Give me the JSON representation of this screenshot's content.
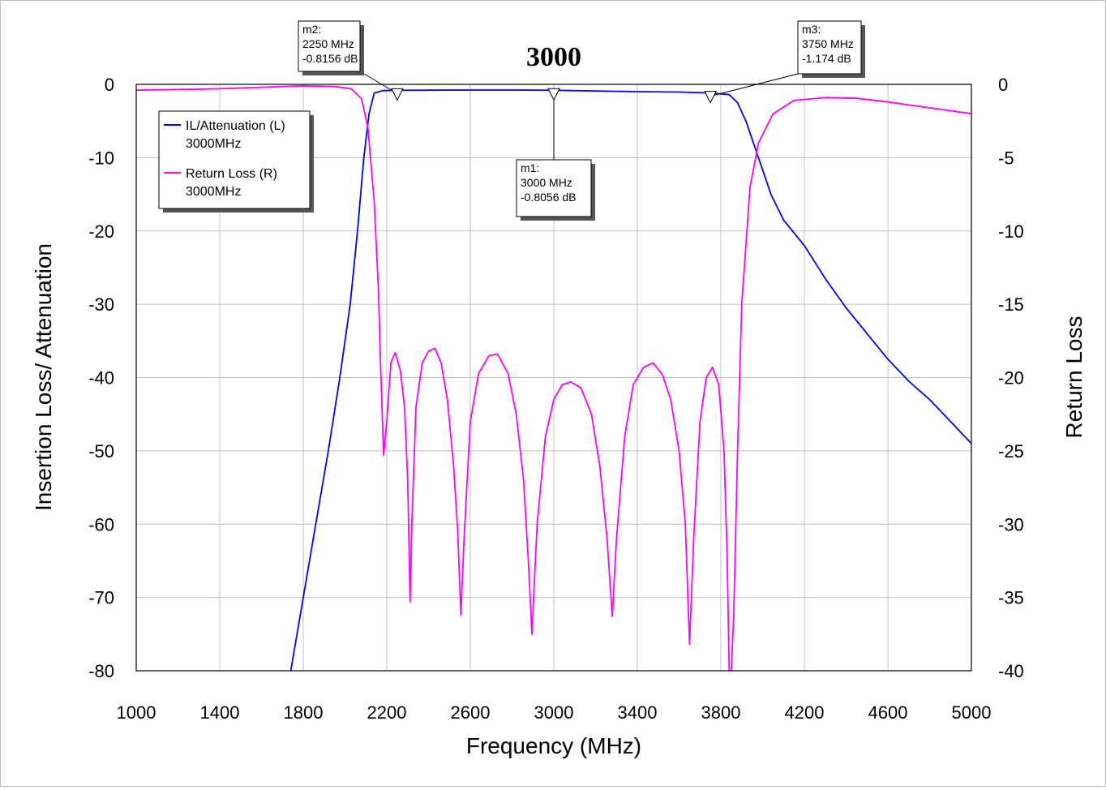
{
  "chart_data": {
    "type": "line",
    "title": "3000",
    "xlabel": "Frequency (MHz)",
    "ylabel_left": "Insertion Loss/ Attenuation",
    "ylabel_right": "Return Loss",
    "xlim": [
      1000,
      5000
    ],
    "ylim_left": [
      -80,
      0
    ],
    "ylim_right": [
      -40,
      0
    ],
    "x_ticks": [
      "1000",
      "1400",
      "1800",
      "2200",
      "2600",
      "3000",
      "3400",
      "3800",
      "4200",
      "4600",
      "5000"
    ],
    "y_ticks_left": [
      "0",
      "-10",
      "-20",
      "-30",
      "-40",
      "-50",
      "-60",
      "-70",
      "-80"
    ],
    "y_ticks_right": [
      "0",
      "-5",
      "-10",
      "-15",
      "-20",
      "-25",
      "-30",
      "-35",
      "-40"
    ],
    "grid": true,
    "legend_position": "top-left",
    "legend": [
      {
        "line1": "IL/Attenuation (L)",
        "line2": "3000MHz"
      },
      {
        "line1": "Return Loss (R)",
        "line2": "3000MHz"
      }
    ],
    "series": [
      {
        "name": "IL/Attenuation (L) 3000MHz",
        "axis": "left",
        "color": "#0000ff",
        "points": [
          [
            1740,
            -80
          ],
          [
            1800,
            -70
          ],
          [
            1860,
            -60
          ],
          [
            1920,
            -50
          ],
          [
            1975,
            -40
          ],
          [
            2025,
            -30
          ],
          [
            2060,
            -20
          ],
          [
            2090,
            -10
          ],
          [
            2115,
            -4
          ],
          [
            2140,
            -1.2
          ],
          [
            2180,
            -0.85
          ],
          [
            2250,
            -0.8156
          ],
          [
            2400,
            -0.8
          ],
          [
            2600,
            -0.78
          ],
          [
            2800,
            -0.78
          ],
          [
            3000,
            -0.8056
          ],
          [
            3200,
            -0.9
          ],
          [
            3400,
            -1.0
          ],
          [
            3600,
            -1.05
          ],
          [
            3750,
            -1.174
          ],
          [
            3840,
            -1.4
          ],
          [
            3880,
            -2.5
          ],
          [
            3920,
            -5
          ],
          [
            3980,
            -10
          ],
          [
            4040,
            -15
          ],
          [
            4100,
            -18.5
          ],
          [
            4200,
            -22
          ],
          [
            4300,
            -26.5
          ],
          [
            4400,
            -30.5
          ],
          [
            4500,
            -34
          ],
          [
            4600,
            -37.5
          ],
          [
            4700,
            -40.5
          ],
          [
            4800,
            -43
          ],
          [
            4900,
            -46
          ],
          [
            5000,
            -49
          ]
        ]
      },
      {
        "name": "Return Loss (R) 3000MHz",
        "axis": "right",
        "color": "#ff00ff",
        "points": [
          [
            1000,
            -0.4
          ],
          [
            1200,
            -0.35
          ],
          [
            1400,
            -0.3
          ],
          [
            1600,
            -0.2
          ],
          [
            1800,
            -0.1
          ],
          [
            1950,
            -0.15
          ],
          [
            2030,
            -0.3
          ],
          [
            2080,
            -1
          ],
          [
            2110,
            -3
          ],
          [
            2140,
            -8
          ],
          [
            2160,
            -14
          ],
          [
            2170,
            -19
          ],
          [
            2185,
            -25.3
          ],
          [
            2200,
            -23
          ],
          [
            2220,
            -19
          ],
          [
            2240,
            -18.3
          ],
          [
            2265,
            -19.5
          ],
          [
            2285,
            -22
          ],
          [
            2300,
            -27
          ],
          [
            2312,
            -35.3
          ],
          [
            2320,
            -30
          ],
          [
            2340,
            -22
          ],
          [
            2370,
            -19
          ],
          [
            2400,
            -18.2
          ],
          [
            2430,
            -18
          ],
          [
            2460,
            -19
          ],
          [
            2490,
            -21.5
          ],
          [
            2520,
            -26
          ],
          [
            2540,
            -30.5
          ],
          [
            2555,
            -36.2
          ],
          [
            2570,
            -31
          ],
          [
            2600,
            -23
          ],
          [
            2640,
            -19.7
          ],
          [
            2690,
            -18.5
          ],
          [
            2730,
            -18.4
          ],
          [
            2780,
            -19.7
          ],
          [
            2820,
            -22.5
          ],
          [
            2855,
            -27
          ],
          [
            2880,
            -33
          ],
          [
            2895,
            -37.5
          ],
          [
            2920,
            -30
          ],
          [
            2960,
            -24
          ],
          [
            3000,
            -21.5
          ],
          [
            3040,
            -20.5
          ],
          [
            3080,
            -20.3
          ],
          [
            3130,
            -20.7
          ],
          [
            3180,
            -22.5
          ],
          [
            3220,
            -26
          ],
          [
            3255,
            -31
          ],
          [
            3280,
            -36.3
          ],
          [
            3300,
            -31
          ],
          [
            3340,
            -24
          ],
          [
            3380,
            -20.5
          ],
          [
            3430,
            -19.3
          ],
          [
            3475,
            -19
          ],
          [
            3520,
            -19.8
          ],
          [
            3560,
            -21.5
          ],
          [
            3600,
            -25
          ],
          [
            3630,
            -30
          ],
          [
            3650,
            -38.2
          ],
          [
            3670,
            -31
          ],
          [
            3700,
            -23
          ],
          [
            3730,
            -20
          ],
          [
            3760,
            -19.3
          ],
          [
            3790,
            -20.5
          ],
          [
            3815,
            -25
          ],
          [
            3830,
            -32
          ],
          [
            3840,
            -40
          ],
          [
            3850,
            -40
          ],
          [
            3862,
            -36
          ],
          [
            3880,
            -25
          ],
          [
            3900,
            -15
          ],
          [
            3940,
            -7
          ],
          [
            3980,
            -4
          ],
          [
            4050,
            -2
          ],
          [
            4150,
            -1.1
          ],
          [
            4300,
            -0.9
          ],
          [
            4450,
            -0.95
          ],
          [
            4600,
            -1.2
          ],
          [
            4750,
            -1.5
          ],
          [
            4900,
            -1.8
          ],
          [
            5000,
            -2
          ]
        ]
      }
    ],
    "markers": [
      {
        "label": "m1:",
        "line2": "3000 MHz",
        "line3": "-0.8056 dB",
        "x": 3000,
        "y": -0.8056
      },
      {
        "label": "m2:",
        "line2": "2250 MHz",
        "line3": "-0.8156 dB",
        "x": 2250,
        "y": -0.8156
      },
      {
        "label": "m3:",
        "line2": "3750 MHz",
        "line3": "-1.174 dB",
        "x": 3750,
        "y": -1.174
      }
    ]
  }
}
